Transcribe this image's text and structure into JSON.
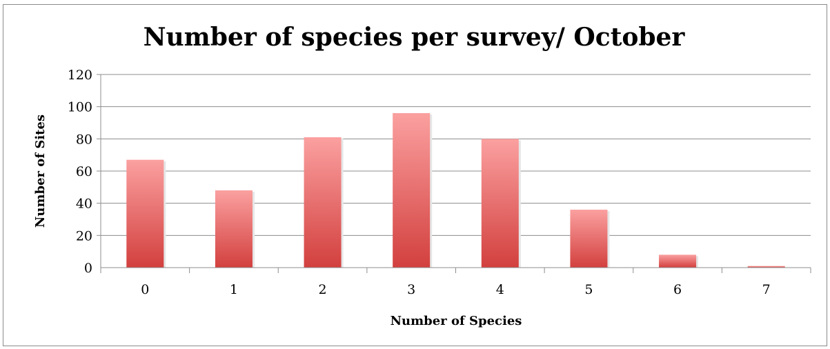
{
  "chart_data": {
    "type": "bar",
    "title": "Number of species per survey/ October",
    "xlabel": "Number of Species",
    "ylabel": "Number of Sites",
    "categories": [
      "0",
      "1",
      "2",
      "3",
      "4",
      "5",
      "6",
      "7"
    ],
    "values": [
      67,
      48,
      81,
      96,
      80,
      36,
      8,
      1
    ],
    "ylim": [
      0,
      120
    ],
    "yticks": [
      "0",
      "20",
      "40",
      "60",
      "80",
      "100",
      "120"
    ],
    "grid": true,
    "legend": "none",
    "colors": {
      "bar_top": "#fba0a0",
      "bar_bottom": "#d2403e",
      "grid": "#8c8c8c",
      "axis": "#8c8c8c"
    }
  }
}
